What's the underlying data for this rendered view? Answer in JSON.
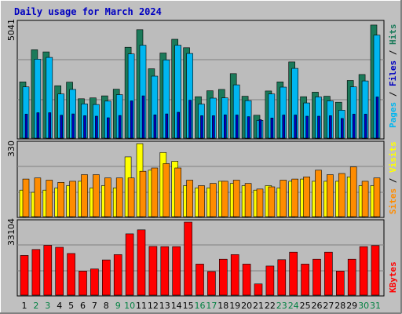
{
  "title": "Daily usage for March 2024",
  "colors": {
    "hits": "#1b7a5a",
    "files": "#00b6f0",
    "pages": "#0000c0",
    "visits": "#ffff00",
    "sites": "#ff8c00",
    "kbytes": "#ff0000",
    "weekend_label": "#008040",
    "weekday_label": "#000000",
    "background": "#c0c0c0",
    "title": "#0000c0"
  },
  "right_labels": {
    "panel1": {
      "pages": "Pages",
      "files": "Files",
      "hits": "Hits",
      "sep": " / "
    },
    "panel2": {
      "sites": "Sites",
      "visits": "Visits",
      "sep": " / "
    },
    "panel3": {
      "kbytes": "KBytes"
    }
  },
  "chart_data": [
    {
      "type": "bar",
      "title": "Daily usage for March 2024",
      "ylabel_max": "5041",
      "ylim": [
        0,
        5041
      ],
      "categories": [
        "1",
        "2",
        "3",
        "4",
        "5",
        "6",
        "7",
        "8",
        "9",
        "10",
        "11",
        "12",
        "13",
        "14",
        "15",
        "16",
        "17",
        "18",
        "19",
        "20",
        "21",
        "22",
        "23",
        "24",
        "25",
        "26",
        "27",
        "28",
        "29",
        "30",
        "31"
      ],
      "weekend_days": [
        "2",
        "3",
        "9",
        "10",
        "16",
        "17",
        "23",
        "24",
        "30",
        "31"
      ],
      "series": [
        {
          "name": "Hits",
          "values": [
            2460,
            3860,
            3770,
            2290,
            2450,
            1720,
            1760,
            1850,
            2140,
            3970,
            4740,
            3030,
            3720,
            4320,
            3950,
            1810,
            2070,
            2130,
            2820,
            1830,
            1000,
            2060,
            2460,
            3330,
            1810,
            2010,
            1830,
            1570,
            2520,
            2780,
            4940
          ]
        },
        {
          "name": "Files",
          "values": [
            2240,
            3450,
            3530,
            1930,
            2130,
            1500,
            1470,
            1620,
            1900,
            3680,
            4060,
            2710,
            3420,
            4060,
            3700,
            1490,
            1750,
            1760,
            2330,
            1640,
            780,
            1930,
            2230,
            3050,
            1540,
            1800,
            1630,
            1220,
            2240,
            2500,
            4500
          ]
        },
        {
          "name": "Pages",
          "values": [
            1050,
            1110,
            1110,
            1000,
            1060,
            980,
            960,
            890,
            990,
            1630,
            1850,
            1020,
            1060,
            1130,
            1660,
            980,
            980,
            1020,
            1010,
            940,
            810,
            880,
            1010,
            1010,
            960,
            960,
            980,
            860,
            1050,
            1050,
            1800
          ]
        }
      ]
    },
    {
      "type": "bar",
      "ylabel_max": "330",
      "ylim": [
        0,
        330
      ],
      "categories": [
        "1",
        "2",
        "3",
        "4",
        "5",
        "6",
        "7",
        "8",
        "9",
        "10",
        "11",
        "12",
        "13",
        "14",
        "15",
        "16",
        "17",
        "18",
        "19",
        "20",
        "21",
        "22",
        "23",
        "24",
        "25",
        "26",
        "27",
        "28",
        "29",
        "30",
        "31"
      ],
      "series": [
        {
          "name": "Visits",
          "values": [
            120,
            110,
            120,
            130,
            140,
            160,
            130,
            140,
            130,
            270,
            330,
            210,
            290,
            250,
            140,
            130,
            130,
            160,
            150,
            140,
            120,
            140,
            130,
            160,
            170,
            160,
            160,
            160,
            180,
            140,
            140
          ]
        },
        {
          "name": "Sites",
          "values": [
            170,
            175,
            165,
            155,
            160,
            190,
            190,
            175,
            175,
            175,
            205,
            220,
            240,
            220,
            165,
            140,
            150,
            160,
            165,
            150,
            125,
            135,
            165,
            170,
            180,
            210,
            190,
            195,
            225,
            160,
            175
          ]
        }
      ]
    },
    {
      "type": "bar",
      "ylabel_max": "33104",
      "ylim": [
        0,
        33104
      ],
      "categories": [
        "1",
        "2",
        "3",
        "4",
        "5",
        "6",
        "7",
        "8",
        "9",
        "10",
        "11",
        "12",
        "13",
        "14",
        "15",
        "16",
        "17",
        "18",
        "19",
        "20",
        "21",
        "22",
        "23",
        "24",
        "25",
        "26",
        "27",
        "28",
        "29",
        "30",
        "31"
      ],
      "series": [
        {
          "name": "KBytes",
          "values": [
            18000,
            20700,
            22600,
            21700,
            18900,
            10900,
            11900,
            16000,
            18400,
            27800,
            29600,
            22100,
            22000,
            22000,
            33100,
            14100,
            10700,
            16300,
            18400,
            14100,
            5100,
            13200,
            16100,
            19500,
            14100,
            16300,
            19500,
            10900,
            16300,
            22000,
            22500
          ]
        }
      ]
    }
  ]
}
